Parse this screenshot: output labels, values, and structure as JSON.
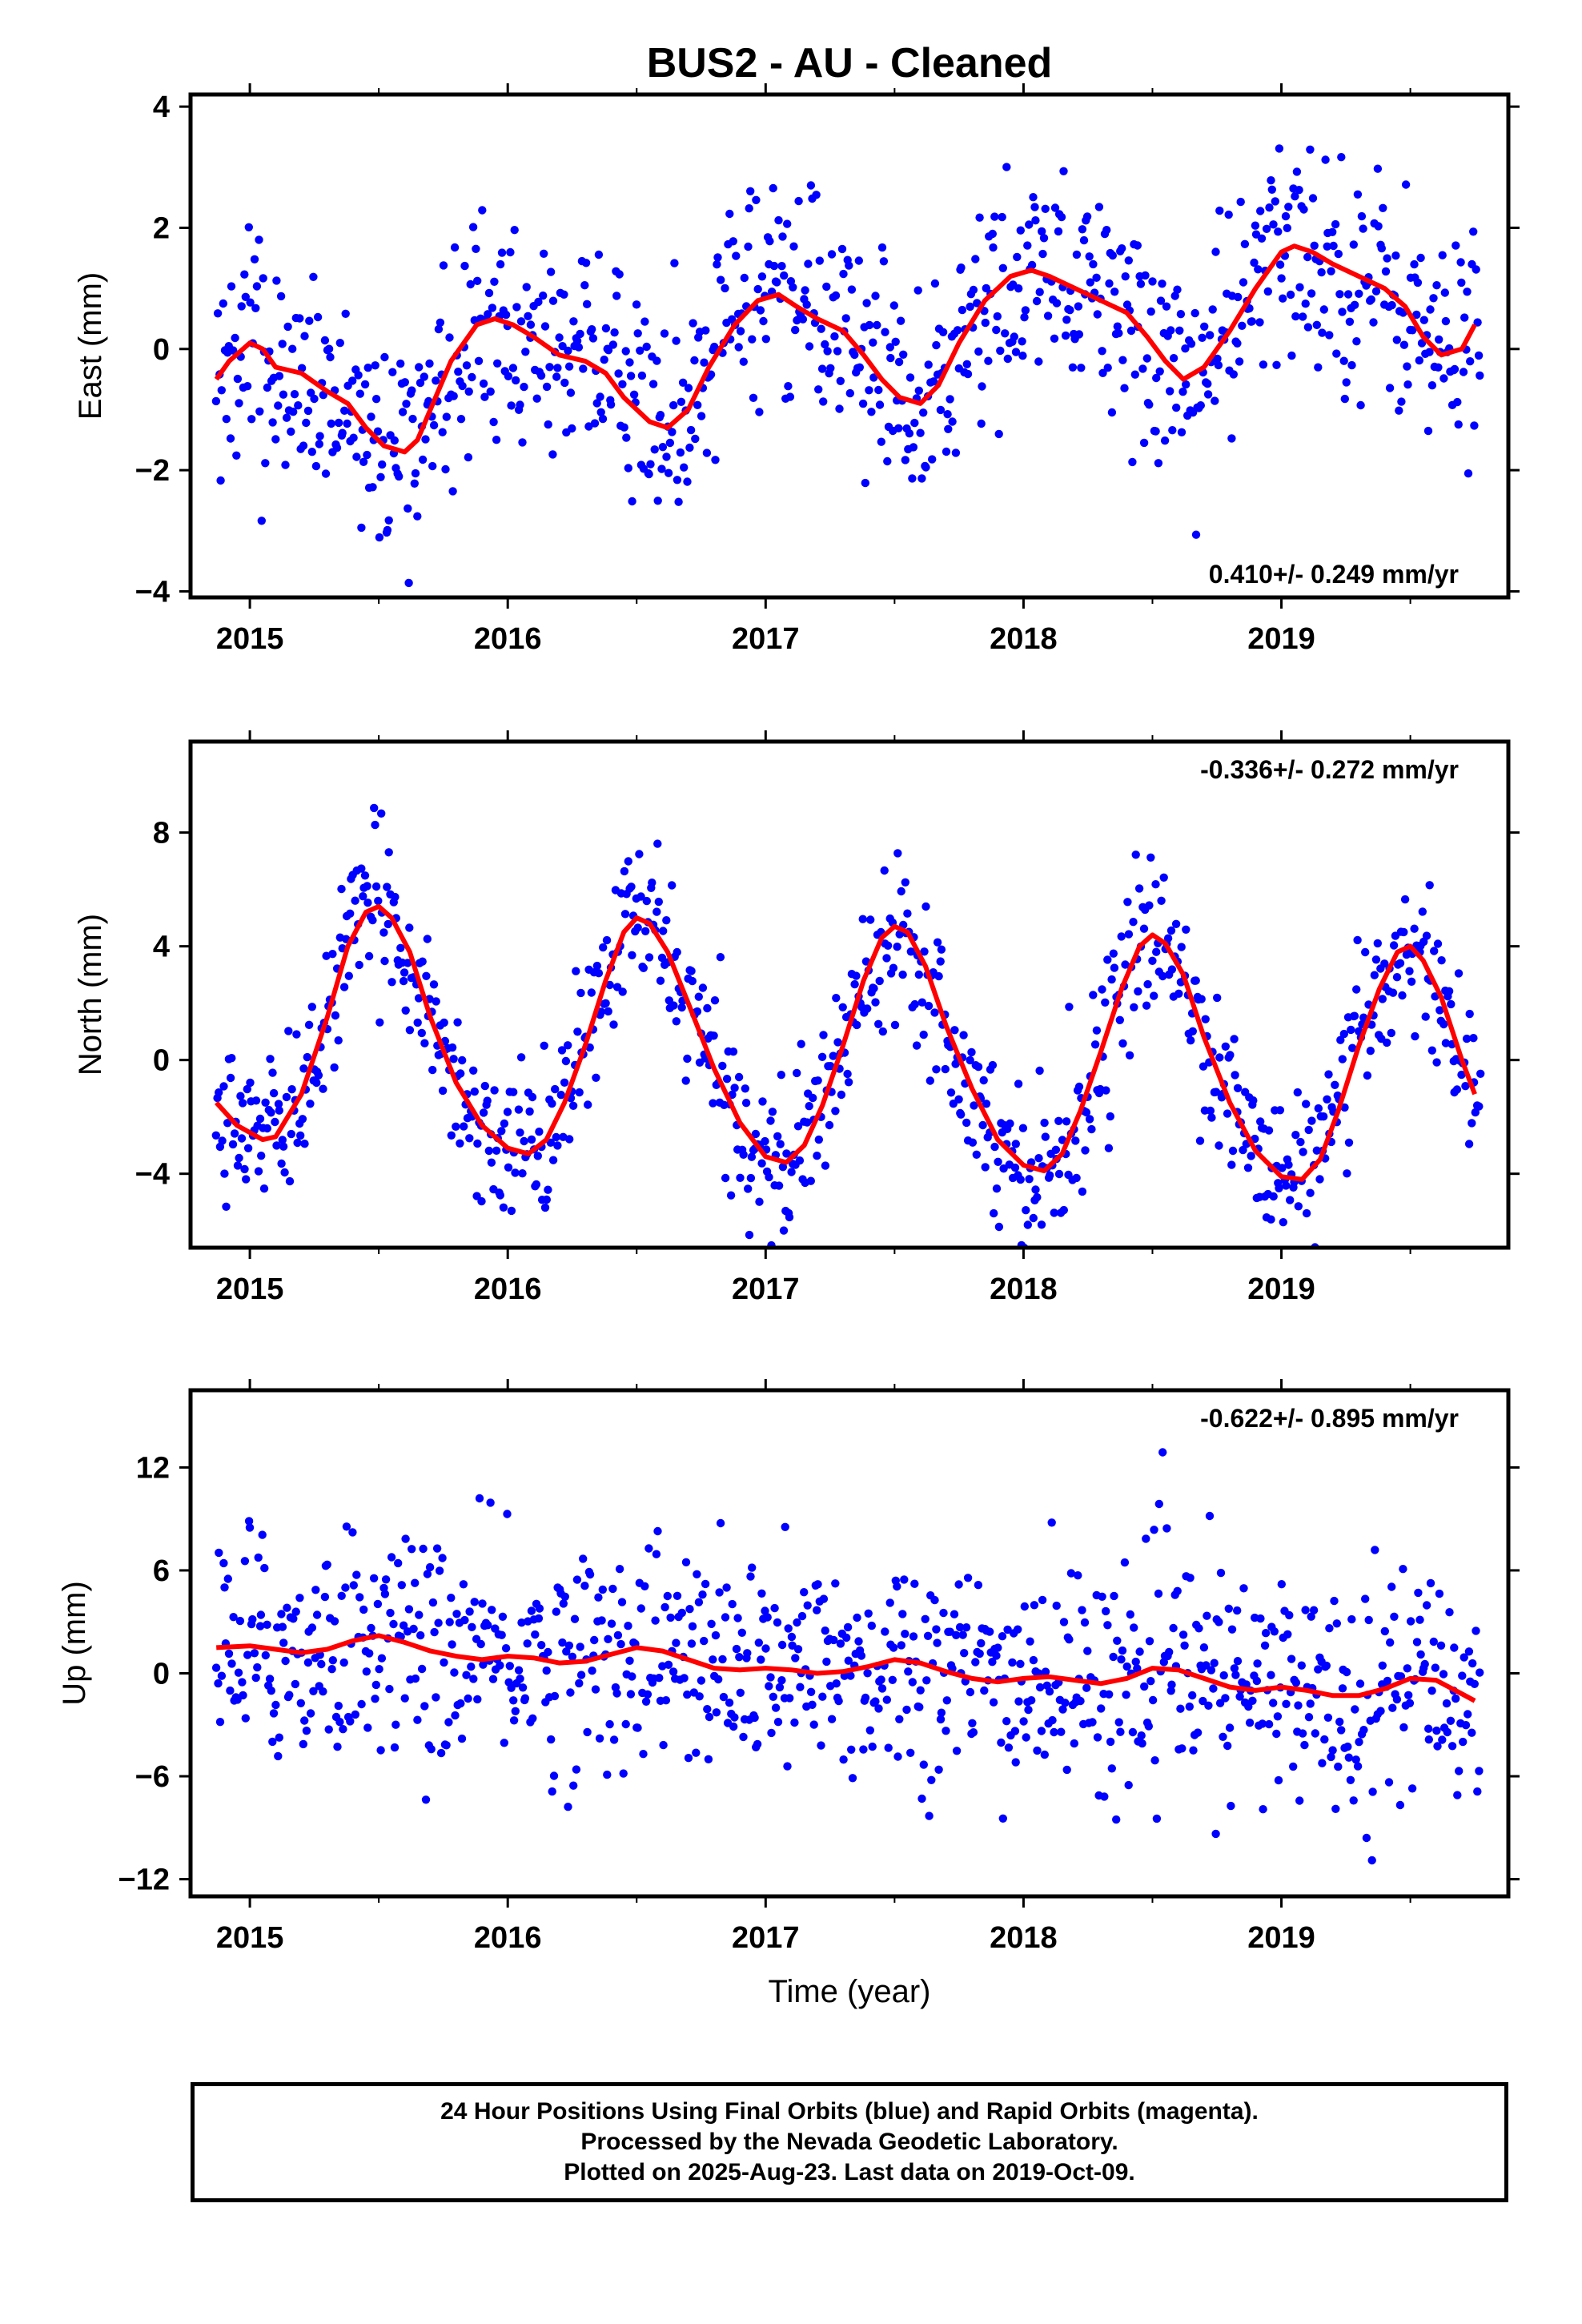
{
  "colors": {
    "points": "#0000ff",
    "fit": "#ff0000",
    "axes": "#000000",
    "background": "#ffffff"
  },
  "chart_data": [
    {
      "type": "scatter",
      "title": "BUS2  - AU - Cleaned",
      "xlabel": "",
      "ylabel": "East (mm)",
      "xlim": [
        2014.77,
        2019.88
      ],
      "ylim": [
        -4.1,
        4.2
      ],
      "xticks": [
        2015,
        2016,
        2017,
        2018,
        2019
      ],
      "yticks": [
        -4,
        -2,
        0,
        2,
        4
      ],
      "ytick_labels": [
        "−4",
        "−2",
        "0",
        "2",
        "4"
      ],
      "rate_label": "0.410+/- 0.249 mm/yr",
      "rate_position": "bottom-right",
      "series": [
        {
          "x": [
            2014.87,
            2014.92,
            2015.0,
            2015.05,
            2015.1,
            2015.2,
            2015.3,
            2015.38,
            2015.45,
            2015.52,
            2015.6,
            2015.65,
            2015.7,
            2015.78,
            2015.88,
            2015.95,
            2016.02,
            2016.1,
            2016.2,
            2016.3,
            2016.38,
            2016.45,
            2016.55,
            2016.62,
            2016.7,
            2016.78,
            2016.88,
            2016.97,
            2017.05,
            2017.12,
            2017.2,
            2017.3,
            2017.38,
            2017.45,
            2017.52,
            2017.6,
            2017.67,
            2017.75,
            2017.85,
            2017.95,
            2018.03,
            2018.1,
            2018.2,
            2018.3,
            2018.4,
            2018.48,
            2018.55,
            2018.62,
            2018.7,
            2018.8,
            2018.9,
            2019.0,
            2019.05,
            2019.12,
            2019.2,
            2019.3,
            2019.4,
            2019.48,
            2019.55,
            2019.62,
            2019.7,
            2019.75
          ],
          "y": [
            -0.5,
            -0.2,
            0.1,
            0.0,
            -0.3,
            -0.4,
            -0.7,
            -0.9,
            -1.3,
            -1.6,
            -1.7,
            -1.5,
            -1.0,
            -0.2,
            0.4,
            0.5,
            0.4,
            0.2,
            -0.1,
            -0.2,
            -0.4,
            -0.8,
            -1.2,
            -1.3,
            -1.0,
            -0.3,
            0.4,
            0.8,
            0.9,
            0.7,
            0.5,
            0.3,
            -0.1,
            -0.5,
            -0.8,
            -0.9,
            -0.6,
            0.1,
            0.8,
            1.2,
            1.3,
            1.2,
            1.0,
            0.8,
            0.6,
            0.2,
            -0.2,
            -0.5,
            -0.3,
            0.3,
            1.0,
            1.6,
            1.7,
            1.6,
            1.4,
            1.2,
            1.0,
            0.7,
            0.2,
            -0.1,
            0.0,
            0.4
          ]
        }
      ]
    },
    {
      "type": "scatter",
      "title": "",
      "xlabel": "",
      "ylabel": "North (mm)",
      "xlim": [
        2014.77,
        2019.88
      ],
      "ylim": [
        -6.6,
        11.2
      ],
      "xticks": [
        2015,
        2016,
        2017,
        2018,
        2019
      ],
      "yticks": [
        -4,
        0,
        4,
        8
      ],
      "ytick_labels": [
        "−4",
        "0",
        "4",
        "8"
      ],
      "rate_label": "-0.336+/- 0.272 mm/yr",
      "rate_position": "top-right",
      "series": [
        {
          "x": [
            2014.87,
            2014.95,
            2015.05,
            2015.1,
            2015.2,
            2015.3,
            2015.38,
            2015.45,
            2015.5,
            2015.55,
            2015.62,
            2015.7,
            2015.8,
            2015.9,
            2016.0,
            2016.08,
            2016.15,
            2016.22,
            2016.3,
            2016.38,
            2016.45,
            2016.5,
            2016.55,
            2016.62,
            2016.7,
            2016.8,
            2016.9,
            2017.0,
            2017.08,
            2017.15,
            2017.22,
            2017.3,
            2017.38,
            2017.45,
            2017.5,
            2017.55,
            2017.62,
            2017.7,
            2017.8,
            2017.9,
            2018.0,
            2018.08,
            2018.15,
            2018.22,
            2018.3,
            2018.38,
            2018.45,
            2018.5,
            2018.55,
            2018.62,
            2018.7,
            2018.8,
            2018.9,
            2019.0,
            2019.08,
            2019.15,
            2019.22,
            2019.3,
            2019.38,
            2019.45,
            2019.5,
            2019.55,
            2019.62,
            2019.7,
            2019.75
          ],
          "y": [
            -1.5,
            -2.3,
            -2.8,
            -2.7,
            -1.2,
            1.5,
            4.0,
            5.2,
            5.4,
            5.0,
            3.8,
            1.5,
            -0.8,
            -2.3,
            -3.1,
            -3.3,
            -2.8,
            -1.5,
            0.5,
            2.8,
            4.5,
            5.0,
            4.8,
            3.8,
            2.0,
            -0.3,
            -2.2,
            -3.4,
            -3.6,
            -3.0,
            -1.6,
            0.5,
            2.8,
            4.3,
            4.7,
            4.5,
            3.3,
            1.2,
            -1.0,
            -2.8,
            -3.7,
            -3.9,
            -3.3,
            -1.8,
            0.3,
            2.5,
            4.0,
            4.4,
            4.1,
            3.0,
            0.8,
            -1.5,
            -3.2,
            -4.1,
            -4.2,
            -3.5,
            -1.8,
            0.5,
            2.5,
            3.8,
            4.0,
            3.5,
            2.2,
            0.0,
            -1.2
          ]
        }
      ]
    },
    {
      "type": "scatter",
      "title": "",
      "xlabel": "Time (year)",
      "ylabel": "Up (mm)",
      "xlim": [
        2014.77,
        2019.88
      ],
      "ylim": [
        -13.0,
        16.5
      ],
      "xticks": [
        2015,
        2016,
        2017,
        2018,
        2019
      ],
      "yticks": [
        -12,
        -6,
        0,
        6,
        12
      ],
      "ytick_labels": [
        "−12",
        "−6",
        "0",
        "6",
        "12"
      ],
      "rate_label": "-0.622+/- 0.895 mm/yr",
      "rate_position": "top-right",
      "series": [
        {
          "x": [
            2014.87,
            2015.0,
            2015.1,
            2015.2,
            2015.3,
            2015.4,
            2015.5,
            2015.6,
            2015.7,
            2015.8,
            2015.9,
            2016.0,
            2016.1,
            2016.2,
            2016.3,
            2016.4,
            2016.5,
            2016.6,
            2016.7,
            2016.8,
            2016.9,
            2017.0,
            2017.1,
            2017.2,
            2017.3,
            2017.4,
            2017.5,
            2017.6,
            2017.7,
            2017.8,
            2017.9,
            2018.0,
            2018.1,
            2018.2,
            2018.3,
            2018.4,
            2018.5,
            2018.6,
            2018.7,
            2018.8,
            2018.9,
            2019.0,
            2019.1,
            2019.2,
            2019.3,
            2019.4,
            2019.5,
            2019.6,
            2019.7,
            2019.75
          ],
          "y": [
            1.5,
            1.6,
            1.4,
            1.2,
            1.4,
            1.9,
            2.2,
            1.8,
            1.3,
            1.0,
            0.8,
            1.0,
            0.9,
            0.6,
            0.7,
            1.1,
            1.5,
            1.3,
            0.8,
            0.3,
            0.2,
            0.3,
            0.2,
            0.0,
            0.1,
            0.4,
            0.8,
            0.6,
            0.1,
            -0.3,
            -0.5,
            -0.3,
            -0.2,
            -0.4,
            -0.6,
            -0.3,
            0.3,
            0.2,
            -0.3,
            -0.8,
            -1.0,
            -0.8,
            -1.0,
            -1.3,
            -1.3,
            -0.9,
            -0.3,
            -0.4,
            -1.2,
            -1.6
          ]
        }
      ]
    }
  ],
  "caption": {
    "line1": "24 Hour Positions Using Final Orbits (blue) and Rapid Orbits (magenta).",
    "line2": "Processed by the Nevada Geodetic Laboratory.",
    "line3": "Plotted on 2025-Aug-23. Last data on 2019-Oct-09."
  }
}
